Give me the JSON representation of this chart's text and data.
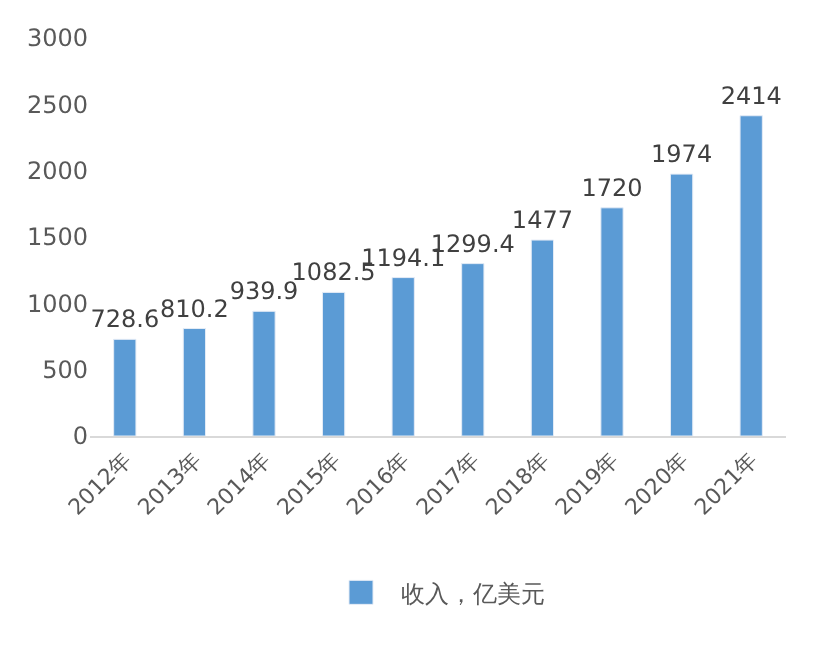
{
  "chart_data": {
    "type": "bar",
    "categories": [
      "2012年",
      "2013年",
      "2014年",
      "2015年",
      "2016年",
      "2017年",
      "2018年",
      "2019年",
      "2020年",
      "2021年"
    ],
    "series": [
      {
        "name": "收入，亿美元",
        "color": "#5b9bd5",
        "values": [
          728.6,
          810.2,
          939.9,
          1082.5,
          1194.1,
          1299.4,
          1477,
          1720,
          1974,
          2414
        ]
      }
    ],
    "ylim": [
      0,
      3000
    ],
    "yticks": [
      0,
      500,
      1000,
      1500,
      2000,
      2500,
      3000
    ],
    "legend": "bottom",
    "data_labels": true
  }
}
